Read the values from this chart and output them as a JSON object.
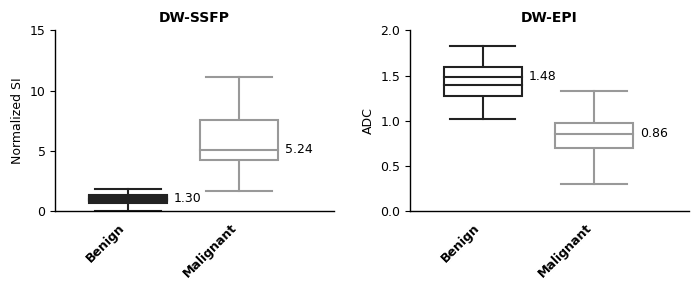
{
  "ssfp": {
    "title": "DW-SSFP",
    "ylabel": "Normalized SI",
    "ylim": [
      0,
      15
    ],
    "yticks": [
      0,
      5,
      10,
      15
    ],
    "categories": [
      "Benign",
      "Malignant"
    ],
    "boxes": [
      {
        "q1": 0.7,
        "median": 1.05,
        "q3": 1.35,
        "whisker_low": 0.0,
        "whisker_high": 1.85,
        "color": "#222222",
        "label_value": "1.30",
        "extra_lines": [
          0.85,
          0.95,
          1.15,
          1.25
        ]
      },
      {
        "q1": 4.3,
        "median": 5.1,
        "q3": 7.6,
        "whisker_low": 1.7,
        "whisker_high": 11.1,
        "color": "#999999",
        "label_value": "5.24",
        "extra_lines": []
      }
    ]
  },
  "epi": {
    "title": "DW-EPI",
    "ylabel": "ADC",
    "ylim": [
      0.0,
      2.0
    ],
    "yticks": [
      0.0,
      0.5,
      1.0,
      1.5,
      2.0
    ],
    "categories": [
      "Benign",
      "Malignant"
    ],
    "boxes": [
      {
        "q1": 1.27,
        "median": 1.49,
        "q3": 1.6,
        "whisker_low": 1.02,
        "whisker_high": 1.83,
        "color": "#222222",
        "label_value": "1.48",
        "extra_lines": [
          1.4
        ]
      },
      {
        "q1": 0.7,
        "median": 0.86,
        "q3": 0.98,
        "whisker_low": 0.3,
        "whisker_high": 1.33,
        "color": "#999999",
        "label_value": "0.86",
        "extra_lines": []
      }
    ]
  },
  "background_color": "#ffffff",
  "title_fontsize": 10,
  "label_fontsize": 9,
  "tick_fontsize": 9,
  "annotation_fontsize": 9
}
